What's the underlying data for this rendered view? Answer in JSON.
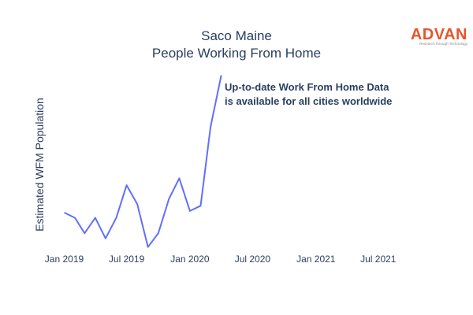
{
  "chart_data": {
    "type": "line",
    "title": [
      "Saco Maine",
      "People Working From Home"
    ],
    "xlabel": "",
    "ylabel": "Estimated WFM Population",
    "x_tick_labels": [
      "Jan 2019",
      "Jul 2019",
      "Jan 2020",
      "Jul 2020",
      "Jan 2021",
      "Jul 2021"
    ],
    "x_tick_dates": [
      "2019-01-01",
      "2019-07-01",
      "2020-01-01",
      "2020-07-01",
      "2021-01-01",
      "2021-07-01"
    ],
    "xlim": [
      "2018-12-01",
      "2021-10-01"
    ],
    "ylim": [
      0,
      100
    ],
    "y_ticks_shown": false,
    "grid": false,
    "series": [
      {
        "color": "#636efa",
        "x": [
          "2019-01-01",
          "2019-02-01",
          "2019-03-01",
          "2019-04-01",
          "2019-05-01",
          "2019-06-01",
          "2019-07-01",
          "2019-08-01",
          "2019-09-01",
          "2019-10-01",
          "2019-11-01",
          "2019-12-01",
          "2020-01-01",
          "2020-02-01",
          "2020-03-01",
          "2020-04-01"
        ],
        "y": [
          22,
          19,
          10,
          19,
          7,
          19,
          38,
          27,
          2,
          10,
          30,
          42,
          23,
          26,
          72,
          102
        ]
      }
    ],
    "annotation": [
      "Up-to-date Work From Home Data",
      "is available for all cities worldwide"
    ]
  },
  "logo": {
    "name": "ADVAN",
    "tagline": "Research through Technology",
    "color": "#e8542c"
  }
}
